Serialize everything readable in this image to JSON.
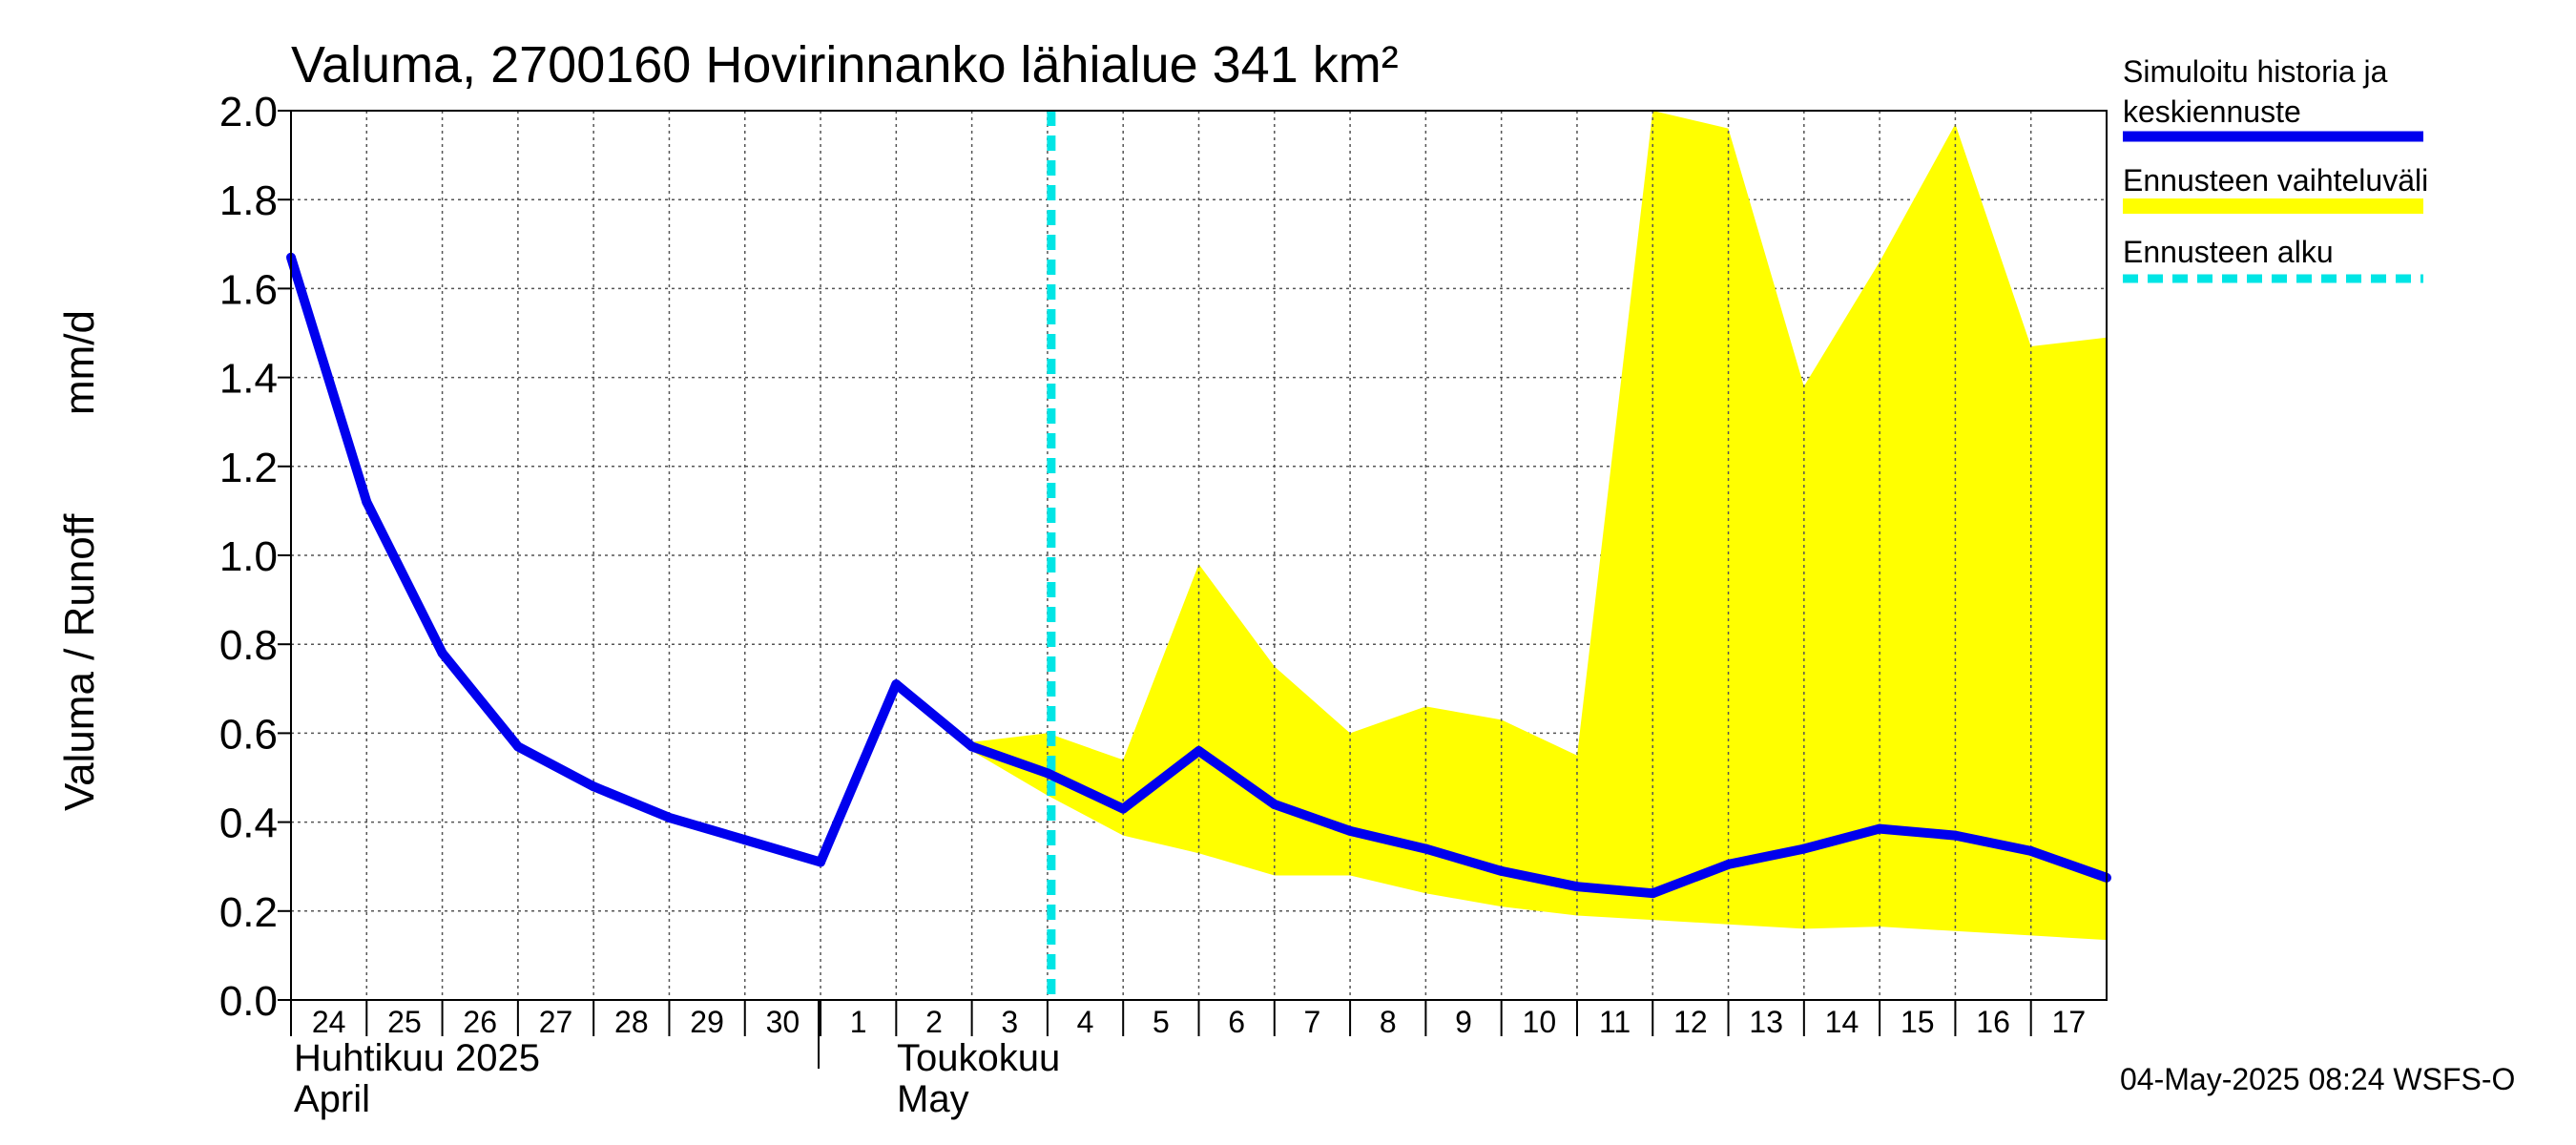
{
  "chart_data": {
    "type": "line",
    "title": "Valuma, 2700160 Hovirinnanko lähialue 341 km²",
    "ylabel": "Valuma / Runoff",
    "yunit": "mm/d",
    "ylim": [
      0.0,
      2.0
    ],
    "yticks": [
      "0.0",
      "0.2",
      "0.4",
      "0.6",
      "0.8",
      "1.0",
      "1.2",
      "1.4",
      "1.6",
      "1.8",
      "2.0"
    ],
    "grid": true,
    "x_day_labels": [
      "24",
      "25",
      "26",
      "27",
      "28",
      "29",
      "30",
      "1",
      "2",
      "3",
      "4",
      "5",
      "6",
      "7",
      "8",
      "9",
      "10",
      "11",
      "12",
      "13",
      "14",
      "15",
      "16",
      "17"
    ],
    "months": [
      {
        "fi": "Huhtikuu  2025",
        "en": "April"
      },
      {
        "fi": "Toukokuu",
        "en": "May"
      }
    ],
    "forecast_start_index": 10,
    "series": [
      {
        "name": "Simuloitu historia ja keskiennuste",
        "color": "#0000ee",
        "values": [
          1.67,
          1.12,
          0.78,
          0.57,
          0.48,
          0.41,
          0.36,
          0.31,
          0.71,
          0.57,
          0.51,
          0.43,
          0.56,
          0.44,
          0.38,
          0.34,
          0.29,
          0.255,
          0.24,
          0.305,
          0.34,
          0.385,
          0.37,
          0.335,
          0.275
        ]
      },
      {
        "name": "Ennusteen vaihteluväli",
        "color": "#ffff00",
        "x_start_index": 9,
        "upper": [
          0.58,
          0.6,
          0.54,
          0.98,
          0.75,
          0.6,
          0.66,
          0.63,
          0.55,
          2.0,
          1.96,
          1.38,
          1.66,
          1.97,
          1.47,
          1.49
        ],
        "lower": [
          0.56,
          0.46,
          0.37,
          0.33,
          0.28,
          0.28,
          0.24,
          0.21,
          0.19,
          0.18,
          0.17,
          0.16,
          0.165,
          0.155,
          0.145,
          0.135
        ]
      }
    ],
    "legend": [
      {
        "label": "Simuloitu historia ja keskiennuste",
        "color": "#0000ee",
        "style": "solid"
      },
      {
        "label": "Ennusteen vaihteluväli",
        "color": "#ffff00",
        "style": "band"
      },
      {
        "label": "Ennusteen alku",
        "color": "#00e5e5",
        "style": "dashed"
      }
    ],
    "legend_position": "top-right",
    "timestamp": "04-May-2025 08:24 WSFS-O"
  }
}
